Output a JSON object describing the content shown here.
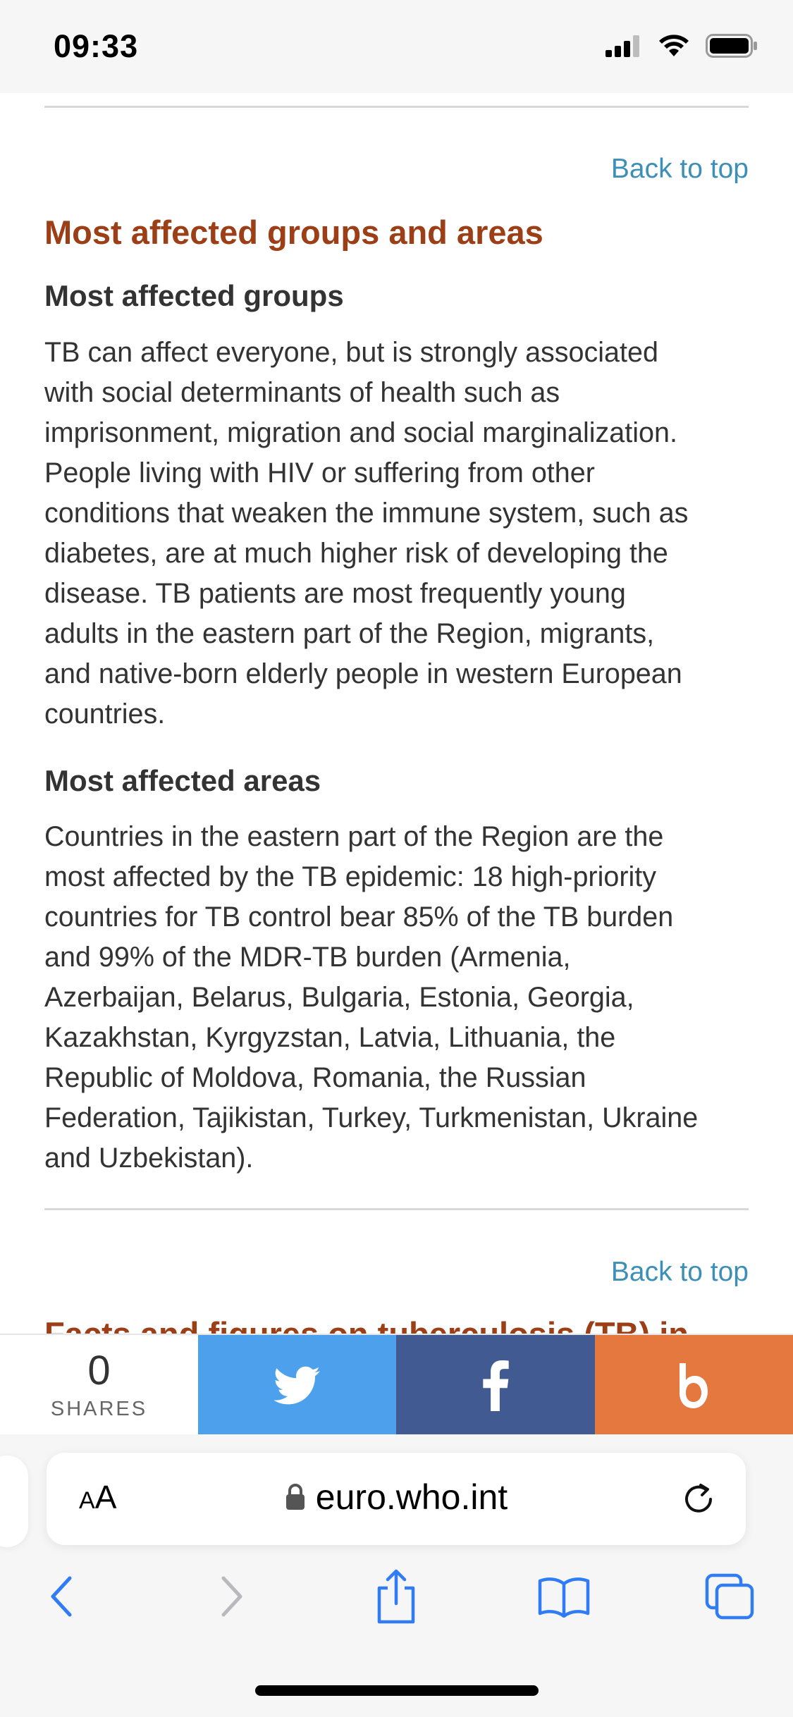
{
  "status_bar": {
    "time": "09:33"
  },
  "article": {
    "back_to_top_1": "Back to top",
    "section_title": "Most affected groups and areas",
    "groups_heading": "Most affected groups",
    "groups_lines": [
      "TB can affect everyone, but is strongly associated",
      "with social determinants of health such as",
      "imprisonment, migration and social marginalization.",
      "People living with HIV or suffering from other",
      "conditions that weaken the immune system, such as",
      "diabetes, are at much higher risk of developing the",
      "disease. TB patients are most frequently young",
      "adults in the eastern part of the Region, migrants,",
      "and native-born elderly people in western European",
      "countries."
    ],
    "areas_heading": "Most affected areas",
    "areas_lines": [
      "Countries in the eastern part of the Region are the",
      "most affected by the TB epidemic: 18 high-priority",
      "countries for TB control bear 85% of the TB burden",
      "and 99% of the MDR-TB burden (Armenia,",
      "Azerbaijan, Belarus, Bulgaria, Estonia, Georgia,",
      "Kazakhstan, Kyrgyzstan, Latvia, Lithuania, the",
      "Republic of Moldova, Romania, the Russian",
      "Federation, Tajikistan, Turkey, Turkmenistan, Ukraine",
      "and Uzbekistan)."
    ],
    "back_to_top_2": "Back to top",
    "next_section_title_partial": "Facts and figures on tuberculosis (TB) in"
  },
  "share_bar": {
    "count": "0",
    "count_label": "SHARES",
    "twitter_color": "#4da1ec",
    "facebook_color": "#425a92",
    "blogger_color": "#e4783e"
  },
  "browser": {
    "aa_label_big": "A",
    "aa_label_small": "A",
    "url": "euro.who.int",
    "accent_color": "#2f7cf6"
  }
}
